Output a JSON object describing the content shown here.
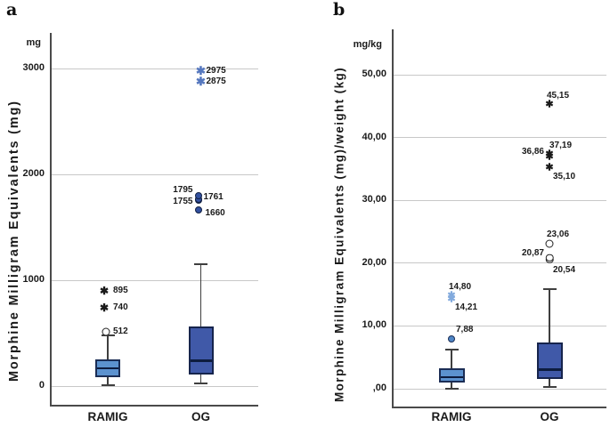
{
  "colors": {
    "grid": "#c8c8c8",
    "axis": "#4a4a4a",
    "whisker": "#3f3f3f",
    "median": "#0d1c3f",
    "text": "#1a1a1a",
    "ramig_box": "#5c92cf",
    "og_box": "#4059a8"
  },
  "chart_data": [
    {
      "type": "box",
      "panel_label": "a",
      "unit": "mg",
      "ylabel": "Morphine Milligram Equivalents (mg)",
      "ylim": [
        0,
        3200
      ],
      "grid": true,
      "legend": "none",
      "categories": [
        "RAMIG",
        "OG"
      ],
      "yticks": [
        {
          "value": 3000,
          "label": "3000"
        },
        {
          "value": 2000,
          "label": "2000"
        },
        {
          "value": 1000,
          "label": "1000"
        },
        {
          "value": 0,
          "label": "0"
        }
      ],
      "groups": [
        {
          "name": "RAMIG",
          "box_fill": "#5c92cf",
          "box_border": "#1b2d55",
          "stats": {
            "whisker_low": 10,
            "q1": 85,
            "median": 168,
            "q3": 252,
            "whisker_high": 480
          },
          "outliers": [
            {
              "value": 512,
              "label": "512",
              "marker": "circle",
              "fill": "#ffffff",
              "stroke": "#222222",
              "size": 9,
              "label_side": "right",
              "dx": -2,
              "label_dx": 2
            },
            {
              "value": 740,
              "label": "740",
              "marker": "star",
              "color": "#1a1a1a",
              "size": 12,
              "label_side": "right",
              "dx": -4,
              "label_dx": 4
            },
            {
              "value": 895,
              "label": "895",
              "marker": "star",
              "color": "#1a1a1a",
              "size": 12,
              "label_side": "right",
              "dx": -4,
              "label_dx": 4
            }
          ]
        },
        {
          "name": "OG",
          "box_fill": "#4059a8",
          "box_border": "#16244c",
          "stats": {
            "whisker_low": 28,
            "q1": 112,
            "median": 238,
            "q3": 563,
            "whisker_high": 1151
          },
          "outliers": [
            {
              "value": 1660,
              "label": "1660",
              "marker": "circle",
              "fill": "#32509f",
              "stroke": "#101f42",
              "size": 8,
              "label_side": "right",
              "dx": -3,
              "label_dx": 2,
              "label_dy": 4
            },
            {
              "value": 1755,
              "label": "1755",
              "marker": "circle",
              "fill": "#32509f",
              "stroke": "#101f42",
              "size": 8,
              "label_side": "left",
              "dx": -3,
              "label_dy": 2
            },
            {
              "value": 1761,
              "label": "1761",
              "marker": "circle",
              "fill": "#32509f",
              "stroke": "#101f42",
              "size": 8,
              "label_side": "right",
              "dx": -3,
              "label_dy": -2
            },
            {
              "value": 1795,
              "label": "1795",
              "marker": "circle",
              "fill": "#32509f",
              "stroke": "#101f42",
              "size": 8,
              "label_side": "left",
              "dx": -3,
              "label_dy": -6
            },
            {
              "value": 2875,
              "label": "2875",
              "marker": "star",
              "color": "#5577be",
              "size": 13,
              "label_side": "right"
            },
            {
              "value": 2975,
              "label": "2975",
              "marker": "star",
              "color": "#5577be",
              "size": 13,
              "label_side": "right"
            }
          ]
        }
      ]
    },
    {
      "type": "box",
      "panel_label": "b",
      "unit": "mg/kg",
      "ylabel": "Morphine Milligram Equivalents (mg)/weight (kg)",
      "ylim": [
        0,
        57
      ],
      "grid": true,
      "legend": "none",
      "categories": [
        "RAMIG",
        "OG"
      ],
      "yticks": [
        {
          "value": 50,
          "label": "50,00"
        },
        {
          "value": 40,
          "label": "40,00"
        },
        {
          "value": 30,
          "label": "30,00"
        },
        {
          "value": 20,
          "label": "20,00"
        },
        {
          "value": 10,
          "label": "10,00"
        },
        {
          "value": 0,
          "label": ",00"
        }
      ],
      "groups": [
        {
          "name": "RAMIG",
          "box_fill": "#5c92cf",
          "box_border": "#1b2d55",
          "stats": {
            "whisker_low": 0,
            "q1": 0.95,
            "median": 1.8,
            "q3": 3.2,
            "whisker_high": 6.3
          },
          "outliers": [
            {
              "value": 7.88,
              "label": "7,88",
              "marker": "circle",
              "fill": "#4f86c6",
              "stroke": "#1b2d55",
              "size": 8,
              "label_side": "above-right",
              "label_dx": 8
            },
            {
              "value": 14.21,
              "label": "14,21",
              "marker": "star",
              "color": "#82aadd",
              "size": 11,
              "label_side": "below-right"
            },
            {
              "value": 14.8,
              "label": "14,80",
              "marker": "star",
              "color": "#82aadd",
              "size": 11,
              "label_side": "above"
            }
          ]
        },
        {
          "name": "OG",
          "box_fill": "#4059a8",
          "box_border": "#16244c",
          "stats": {
            "whisker_low": 0.35,
            "q1": 1.55,
            "median": 3.05,
            "q3": 7.3,
            "whisker_high": 15.9
          },
          "outliers": [
            {
              "value": 20.54,
              "label": "20,54",
              "marker": "circle",
              "fill": "#ffffff",
              "stroke": "#222222",
              "size": 8.5,
              "label_side": "below-right",
              "label_dy": 3
            },
            {
              "value": 20.87,
              "label": "20,87",
              "marker": "circle",
              "fill": "#ffffff",
              "stroke": "#222222",
              "size": 8.5,
              "label_side": "left",
              "label_dy": -5
            },
            {
              "value": 23.06,
              "label": "23,06",
              "marker": "circle",
              "fill": "#ffffff",
              "stroke": "#222222",
              "size": 9,
              "label_side": "above-right"
            },
            {
              "value": 35.1,
              "label": "35,10",
              "marker": "star",
              "color": "#1a1a1a",
              "size": 11,
              "label_side": "below-right",
              "label_dy": 1
            },
            {
              "value": 36.86,
              "label": "36,86",
              "marker": "star",
              "color": "#1a1a1a",
              "size": 11,
              "label_side": "left",
              "label_dy": -6
            },
            {
              "value": 37.19,
              "label": "37,19",
              "marker": "star",
              "color": "#1a1a1a",
              "size": 11,
              "label_side": "above-right",
              "label_dx": 3
            },
            {
              "value": 45.15,
              "label": "45,15",
              "marker": "star",
              "color": "#1a1a1a",
              "size": 11,
              "label_side": "above-right"
            }
          ]
        }
      ]
    }
  ]
}
